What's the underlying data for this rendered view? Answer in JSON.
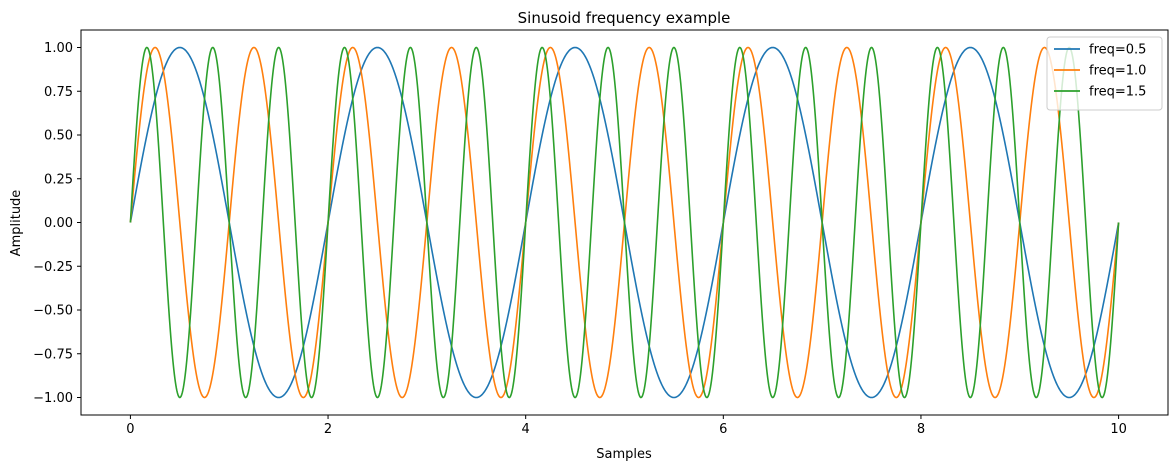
{
  "chart_data": {
    "type": "line",
    "title": "Sinusoid frequency example",
    "xlabel": "Samples",
    "ylabel": "Amplitude",
    "xlim": [
      -0.5,
      10.5
    ],
    "ylim": [
      -1.1,
      1.1
    ],
    "x_ticks": [
      0,
      2,
      4,
      6,
      8,
      10
    ],
    "x_tick_labels": [
      "0",
      "2",
      "4",
      "6",
      "8",
      "10"
    ],
    "y_ticks": [
      1.0,
      0.75,
      0.5,
      0.25,
      0.0,
      -0.25,
      -0.5,
      -0.75,
      -1.0
    ],
    "y_tick_labels": [
      "1.00",
      "0.75",
      "0.50",
      "0.25",
      "0.00",
      "−0.25",
      "−0.50",
      "−0.75",
      "−1.00"
    ],
    "x_range": [
      0,
      10
    ],
    "function": "sin",
    "grid": false,
    "legend_position": "top-right",
    "series": [
      {
        "name": "freq=0.5",
        "frequency": 0.5,
        "color": "#1f77b4"
      },
      {
        "name": "freq=1.0",
        "frequency": 1.0,
        "color": "#ff7f0e"
      },
      {
        "name": "freq=1.5",
        "frequency": 1.5,
        "color": "#2ca02c"
      }
    ]
  }
}
